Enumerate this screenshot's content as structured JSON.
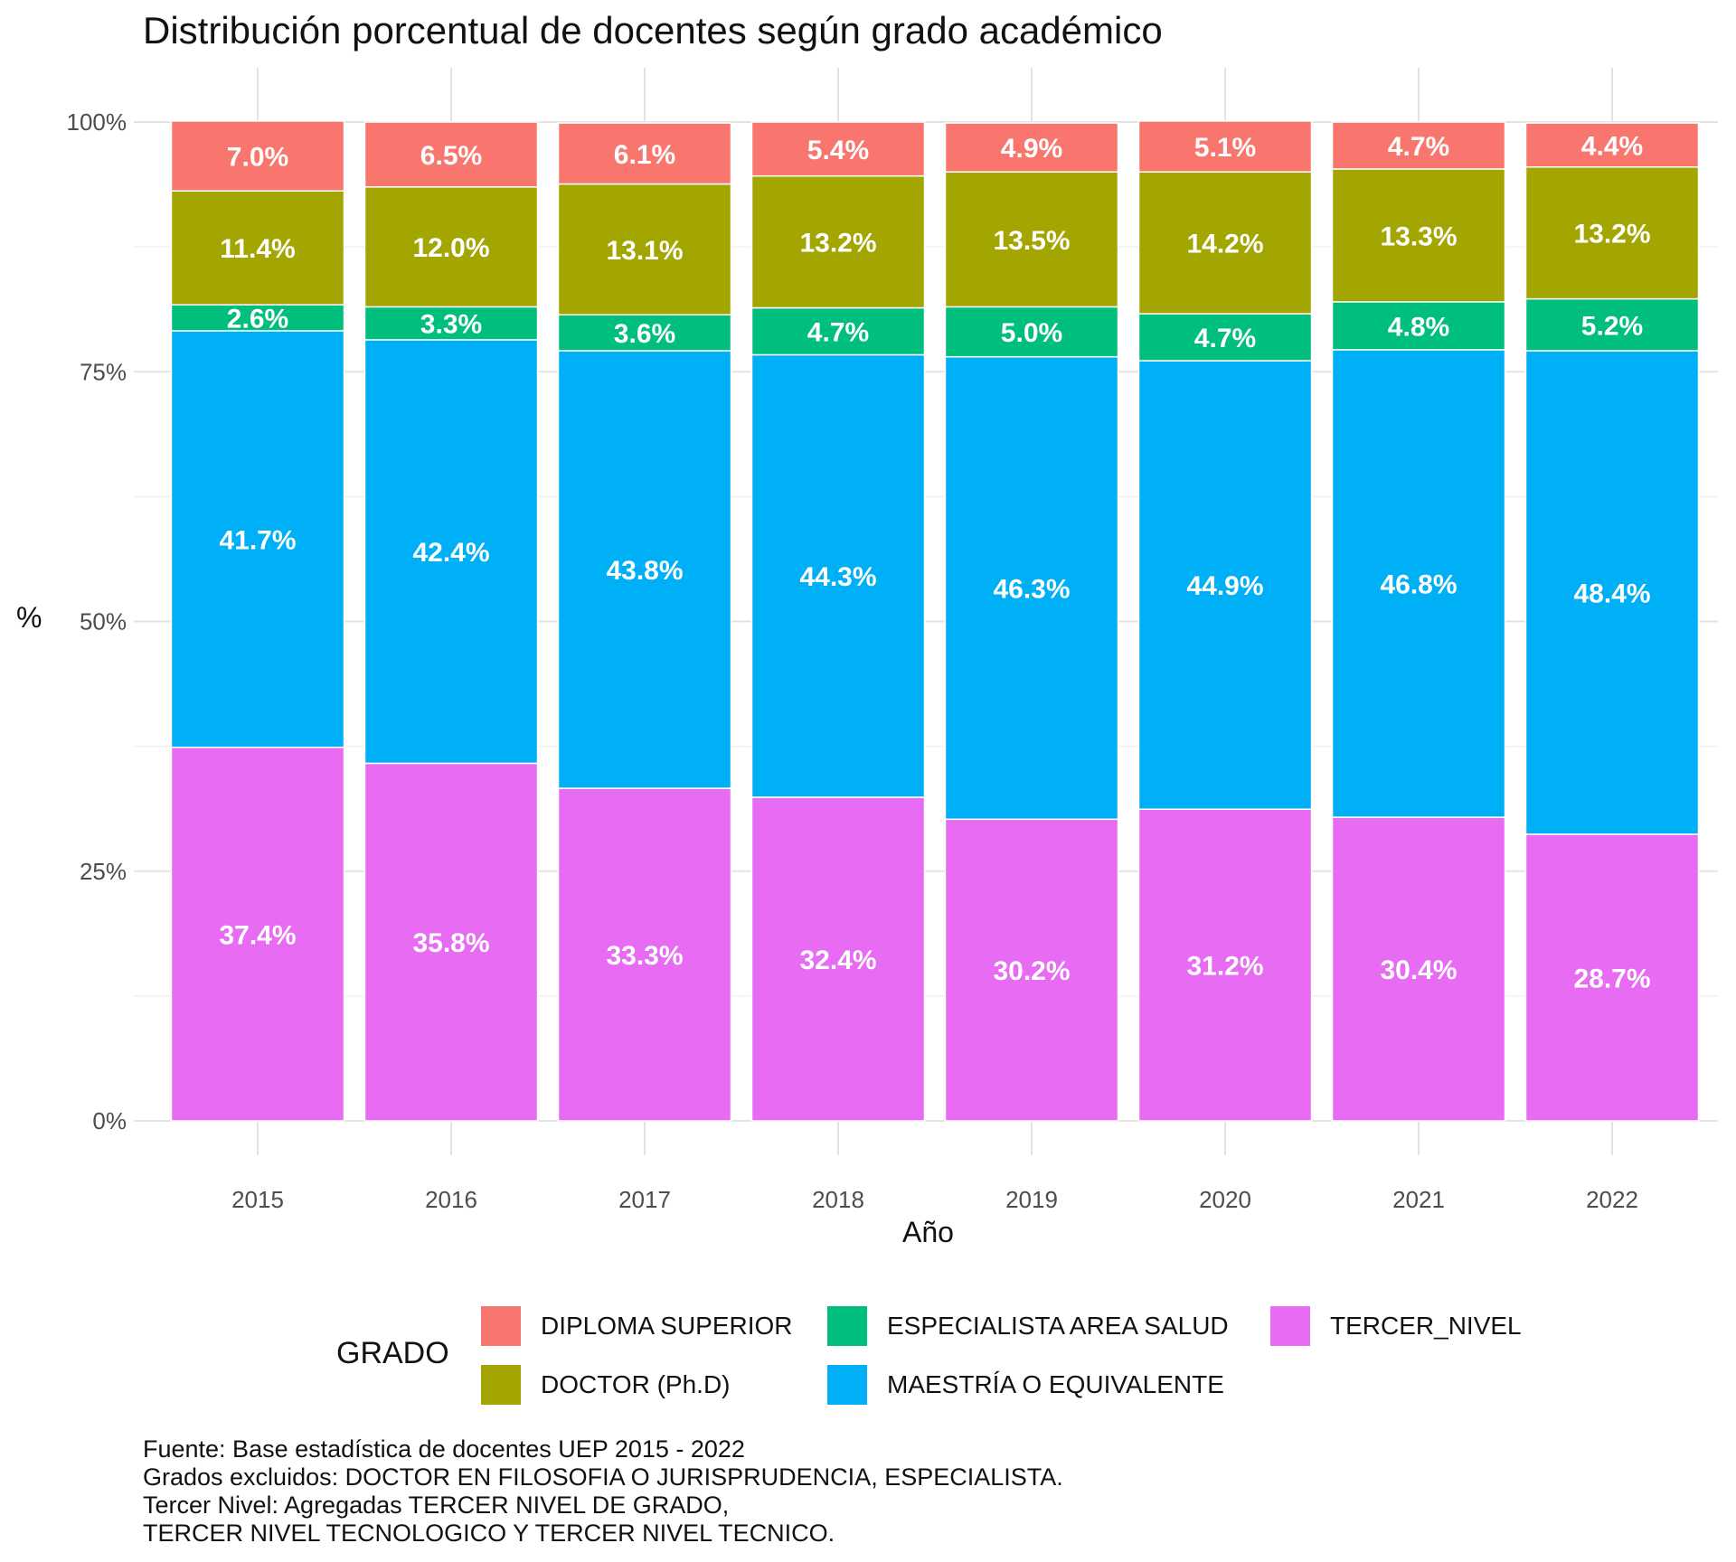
{
  "title": "Distribución porcentual de docentes según grado académico",
  "caption": [
    "Fuente: Base estadística de docentes UEP 2015 - 2022",
    "Grados excluidos: DOCTOR EN FILOSOFIA O JURISPRUDENCIA, ESPECIALISTA.",
    "Tercer Nivel: Agregadas TERCER NIVEL DE GRADO,",
    "TERCER NIVEL TECNOLOGICO Y TERCER NIVEL TECNICO."
  ],
  "legend": {
    "title": "GRADO",
    "items": [
      {
        "label": "DIPLOMA SUPERIOR",
        "color": "#F8766D"
      },
      {
        "label": "DOCTOR (Ph.D)",
        "color": "#A3A500"
      },
      {
        "label": "ESPECIALISTA AREA SALUD",
        "color": "#00BF7D"
      },
      {
        "label": "MAESTRÍA O EQUIVALENTE",
        "color": "#00B0F6"
      },
      {
        "label": "TERCER_NIVEL",
        "color": "#E76BF3"
      }
    ]
  },
  "chart_data": {
    "type": "bar",
    "stacked": true,
    "title": "Distribución porcentual de docentes según grado académico",
    "xlabel": "Año",
    "ylabel": "%",
    "ylim": [
      0,
      100
    ],
    "y_ticks": [
      "0%",
      "25%",
      "50%",
      "75%",
      "100%"
    ],
    "y_tick_values": [
      0,
      25,
      50,
      75,
      100
    ],
    "categories": [
      "2015",
      "2016",
      "2017",
      "2018",
      "2019",
      "2020",
      "2021",
      "2022"
    ],
    "series": [
      {
        "name": "TERCER_NIVEL",
        "color": "#E76BF3",
        "values": [
          37.4,
          35.8,
          33.3,
          32.4,
          30.2,
          31.2,
          30.4,
          28.7
        ],
        "labels": [
          "37.4%",
          "35.8%",
          "33.3%",
          "32.4%",
          "30.2%",
          "31.2%",
          "30.4%",
          "28.7%"
        ]
      },
      {
        "name": "MAESTRÍA O EQUIVALENTE",
        "color": "#00B0F6",
        "values": [
          41.7,
          42.4,
          43.8,
          44.3,
          46.3,
          44.9,
          46.8,
          48.4
        ],
        "labels": [
          "41.7%",
          "42.4%",
          "43.8%",
          "44.3%",
          "46.3%",
          "44.9%",
          "46.8%",
          "48.4%"
        ]
      },
      {
        "name": "ESPECIALISTA AREA SALUD",
        "color": "#00BF7D",
        "values": [
          2.6,
          3.3,
          3.6,
          4.7,
          5.0,
          4.7,
          4.8,
          5.2
        ],
        "labels": [
          "2.6%",
          "3.3%",
          "3.6%",
          "4.7%",
          "5.0%",
          "4.7%",
          "4.8%",
          "5.2%"
        ]
      },
      {
        "name": "DOCTOR (Ph.D)",
        "color": "#A3A500",
        "values": [
          11.4,
          12.0,
          13.1,
          13.2,
          13.5,
          14.2,
          13.3,
          13.2
        ],
        "labels": [
          "11.4%",
          "12.0%",
          "13.1%",
          "13.2%",
          "13.5%",
          "14.2%",
          "13.3%",
          "13.2%"
        ]
      },
      {
        "name": "DIPLOMA SUPERIOR",
        "color": "#F8766D",
        "values": [
          7.0,
          6.5,
          6.1,
          5.4,
          4.9,
          5.1,
          4.7,
          4.4
        ],
        "labels": [
          "7.0%",
          "6.5%",
          "6.1%",
          "5.4%",
          "4.9%",
          "5.1%",
          "4.7%",
          "4.4%"
        ]
      }
    ],
    "grid": true,
    "legend_position": "bottom"
  }
}
